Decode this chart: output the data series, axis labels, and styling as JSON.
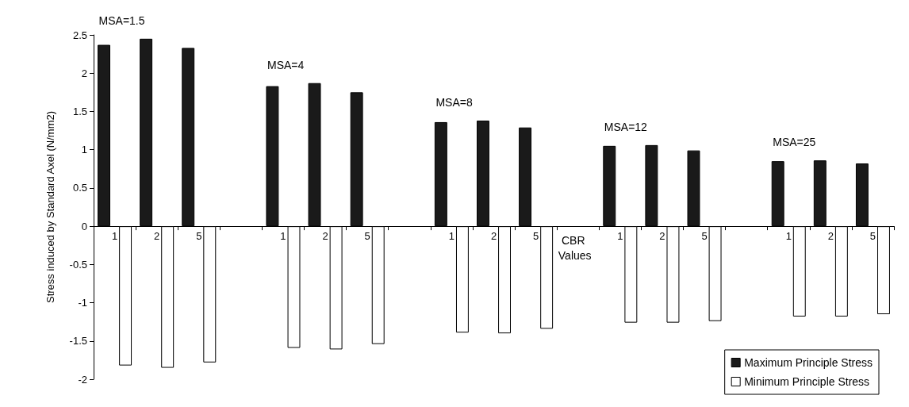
{
  "chart_data": {
    "type": "bar",
    "categories": [
      "1",
      "2",
      "5",
      null,
      "1",
      "2",
      "5",
      null,
      "1",
      "2",
      "5",
      null,
      "1",
      "2",
      "5",
      null,
      "1",
      "2",
      "5"
    ],
    "series": [
      {
        "name": "Maximum Principle Stress",
        "color": "#1a1a1a",
        "values": [
          2.37,
          2.45,
          2.33,
          null,
          1.83,
          1.87,
          1.75,
          null,
          1.36,
          1.38,
          1.29,
          null,
          1.05,
          1.06,
          0.99,
          null,
          0.85,
          0.86,
          0.82
        ]
      },
      {
        "name": "Minimum Principle Stress",
        "color": "#ffffff",
        "values": [
          -1.82,
          -1.85,
          -1.78,
          null,
          -1.59,
          -1.61,
          -1.54,
          null,
          -1.39,
          -1.4,
          -1.34,
          null,
          -1.26,
          -1.26,
          -1.24,
          null,
          -1.18,
          -1.18,
          -1.15
        ]
      }
    ],
    "xlabel": "CBR Values",
    "ylabel": "Stress induced by Standard Axel (N/mm2)",
    "annotations": [
      "MSA=1.5",
      "MSA=4",
      "MSA=8",
      "MSA=12",
      "MSA=25"
    ],
    "ylim": [
      -2,
      2.5
    ],
    "yticks": [
      -2,
      -1.5,
      -1,
      -0.5,
      0,
      0.5,
      1,
      1.5,
      2,
      2.5
    ],
    "grid": false,
    "legend": "bottom right"
  }
}
